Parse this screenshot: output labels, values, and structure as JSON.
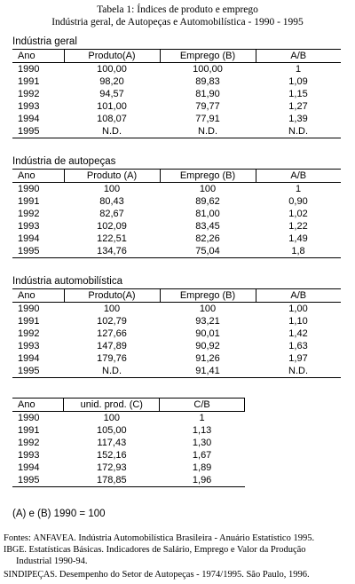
{
  "header": {
    "title_line1": "Tabela 1: Índices de produto e emprego",
    "title_line2": "Indústria geral, de Autopeças e Automobilística - 1990 - 1995"
  },
  "sections": [
    {
      "title": "Indústria geral",
      "columns": [
        "Ano",
        "Produto(A)",
        "Emprego (B)",
        "A/B"
      ],
      "rows": [
        [
          "1990",
          "100,00",
          "100,00",
          "1"
        ],
        [
          "1991",
          "98,20",
          "89,83",
          "1,09"
        ],
        [
          "1992",
          "94,57",
          "81,90",
          "1,15"
        ],
        [
          "1993",
          "101,00",
          "79,77",
          "1,27"
        ],
        [
          "1994",
          "108,07",
          "77,91",
          "1,39"
        ],
        [
          "1995",
          "N.D.",
          "N.D.",
          "N.D."
        ]
      ]
    },
    {
      "title": "Indústria de autopeças",
      "columns": [
        "Ano",
        "Produto (A)",
        "Emprego (B)",
        "A/B"
      ],
      "rows": [
        [
          "1990",
          "100",
          "100",
          "1"
        ],
        [
          "1991",
          "80,43",
          "89,62",
          "0,90"
        ],
        [
          "1992",
          "82,67",
          "81,00",
          "1,02"
        ],
        [
          "1993",
          "102,09",
          "83,45",
          "1,22"
        ],
        [
          "1994",
          "122,51",
          "82,26",
          "1,49"
        ],
        [
          "1995",
          "134,76",
          "75,04",
          "1,8"
        ]
      ]
    },
    {
      "title": "Indústria  automobilística",
      "columns": [
        "Ano",
        "Produto(A)",
        "Emprego (B)",
        "A/B"
      ],
      "rows": [
        [
          "1990",
          "100",
          "100",
          "1,00"
        ],
        [
          "1991",
          "102,79",
          "93,21",
          "1,10"
        ],
        [
          "1992",
          "127,66",
          "90,01",
          "1,42"
        ],
        [
          "1993",
          "147,89",
          "90,92",
          "1,63"
        ],
        [
          "1994",
          "179,76",
          "91,26",
          "1,97"
        ],
        [
          "1995",
          "N.D.",
          "91,41",
          "N.D."
        ]
      ]
    },
    {
      "title": "",
      "columns": [
        "Ano",
        "unid. prod. (C)",
        "C/B"
      ],
      "rows": [
        [
          "1990",
          "100",
          "1"
        ],
        [
          "1991",
          "105,00",
          "1,13"
        ],
        [
          "1992",
          "117,43",
          "1,30"
        ],
        [
          "1993",
          "152,16",
          "1,67"
        ],
        [
          "1994",
          "172,93",
          "1,89"
        ],
        [
          "1995",
          "178,85",
          "1,96"
        ]
      ]
    }
  ],
  "footnote": "(A) e (B) 1990 = 100",
  "sources": {
    "line1_prefix": "Fontes:",
    "line1_org": "ANFAVEA.",
    "line1_text": "Indústria Automobilística Brasileira - Anuário Estatístico 1995.",
    "line2_org": "IBGE.",
    "line2_text": "Estatísticas Básicas.  Indicadores de Salário, Emprego e Valor da Produção",
    "line3_text": "Industrial 1990-94.",
    "line4_org": "SINDIPEÇAS.",
    "line4_text": "Desempenho do Setor de Autopeças - 1974/1995.  São Paulo, 1996."
  }
}
